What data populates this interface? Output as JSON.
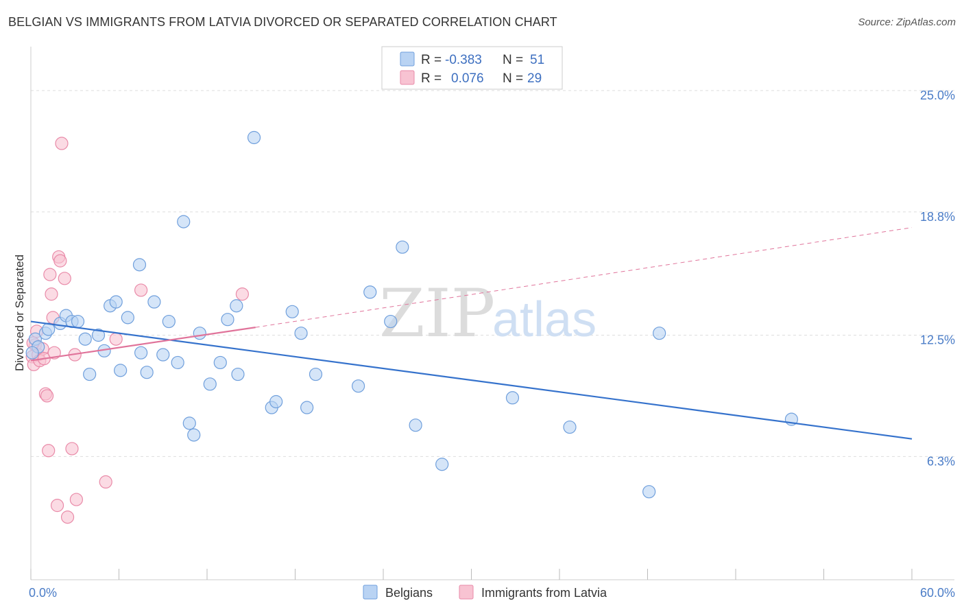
{
  "title": "BELGIAN VS IMMIGRANTS FROM LATVIA DIVORCED OR SEPARATED CORRELATION CHART",
  "source": "Source: ZipAtlas.com",
  "watermark": {
    "zip": "ZIP",
    "atlas": "atlas"
  },
  "colors": {
    "belgians_fill": "#b9d3f3",
    "belgians_stroke": "#6f9fdc",
    "belgians_line": "#3572cc",
    "latvia_fill": "#f8c3d2",
    "latvia_stroke": "#e98aa8",
    "latvia_line": "#e0739a",
    "grid": "#dddddd",
    "tick_label": "#4a7cc7"
  },
  "stats_legend": [
    {
      "r_label": "R =",
      "r_value": "-0.383",
      "n_label": "N =",
      "n_value": "51"
    },
    {
      "r_label": "R =",
      "r_value": "0.076",
      "n_label": "N =",
      "n_value": "29"
    }
  ],
  "chart_data": {
    "type": "scatter",
    "title": "BELGIAN VS IMMIGRANTS FROM LATVIA DIVORCED OR SEPARATED CORRELATION CHART",
    "xlabel": "",
    "ylabel": "Divorced or Separated",
    "xlim": [
      0,
      60
    ],
    "ylim": [
      0,
      27
    ],
    "x_tick_labels": [
      "0.0%",
      "60.0%"
    ],
    "y_ticks": [
      6.3,
      12.5,
      18.8,
      25.0
    ],
    "y_tick_labels": [
      "6.3%",
      "12.5%",
      "18.8%",
      "25.0%"
    ],
    "grid": true,
    "legend_position": "bottom",
    "series": [
      {
        "name": "Belgians",
        "points": [
          [
            0.3,
            12.3
          ],
          [
            0.5,
            11.9
          ],
          [
            1.0,
            12.6
          ],
          [
            1.2,
            12.8
          ],
          [
            2.0,
            13.1
          ],
          [
            2.4,
            13.5
          ],
          [
            2.8,
            13.2
          ],
          [
            3.2,
            13.2
          ],
          [
            3.7,
            12.3
          ],
          [
            4.0,
            10.5
          ],
          [
            4.6,
            12.5
          ],
          [
            5.0,
            11.7
          ],
          [
            5.4,
            14.0
          ],
          [
            5.8,
            14.2
          ],
          [
            6.1,
            10.7
          ],
          [
            6.6,
            13.4
          ],
          [
            7.4,
            16.1
          ],
          [
            7.5,
            11.6
          ],
          [
            7.9,
            10.6
          ],
          [
            8.4,
            14.2
          ],
          [
            9.0,
            11.5
          ],
          [
            9.4,
            13.2
          ],
          [
            10.0,
            11.1
          ],
          [
            10.4,
            18.3
          ],
          [
            10.8,
            8.0
          ],
          [
            11.1,
            7.4
          ],
          [
            11.5,
            12.6
          ],
          [
            12.2,
            10.0
          ],
          [
            12.9,
            11.1
          ],
          [
            13.4,
            13.3
          ],
          [
            14.0,
            14.0
          ],
          [
            14.1,
            10.5
          ],
          [
            15.2,
            22.6
          ],
          [
            16.4,
            8.8
          ],
          [
            16.7,
            9.1
          ],
          [
            17.8,
            13.7
          ],
          [
            18.4,
            12.6
          ],
          [
            18.8,
            8.8
          ],
          [
            19.4,
            10.5
          ],
          [
            22.3,
            9.9
          ],
          [
            23.1,
            14.7
          ],
          [
            24.5,
            13.2
          ],
          [
            25.3,
            17.0
          ],
          [
            26.2,
            7.9
          ],
          [
            28.0,
            5.9
          ],
          [
            32.8,
            9.3
          ],
          [
            36.7,
            7.8
          ],
          [
            42.1,
            4.5
          ],
          [
            42.8,
            12.6
          ],
          [
            51.8,
            8.2
          ],
          [
            0.1,
            11.6
          ]
        ],
        "trend": {
          "x": [
            0,
            60
          ],
          "y": [
            13.2,
            7.2
          ]
        }
      },
      {
        "name": "Immigrants from Latvia",
        "points": [
          [
            0.1,
            11.4
          ],
          [
            0.2,
            11.0
          ],
          [
            0.3,
            12.0
          ],
          [
            0.4,
            12.7
          ],
          [
            0.5,
            11.5
          ],
          [
            0.6,
            11.2
          ],
          [
            0.8,
            11.8
          ],
          [
            0.9,
            11.3
          ],
          [
            1.0,
            9.5
          ],
          [
            1.1,
            9.4
          ],
          [
            1.2,
            6.6
          ],
          [
            1.3,
            15.6
          ],
          [
            1.4,
            14.6
          ],
          [
            1.5,
            13.4
          ],
          [
            1.6,
            11.6
          ],
          [
            1.8,
            3.8
          ],
          [
            1.9,
            16.5
          ],
          [
            2.0,
            16.3
          ],
          [
            2.3,
            15.4
          ],
          [
            2.8,
            6.7
          ],
          [
            2.1,
            22.3
          ],
          [
            2.5,
            3.2
          ],
          [
            3.0,
            11.5
          ],
          [
            3.1,
            4.1
          ],
          [
            5.1,
            5.0
          ],
          [
            5.8,
            12.3
          ],
          [
            7.5,
            14.8
          ],
          [
            14.4,
            14.6
          ],
          [
            0.15,
            12.1
          ]
        ],
        "trend": {
          "x": [
            0,
            15.3
          ],
          "y": [
            11.2,
            12.9
          ],
          "dashed_extension": {
            "x": [
              15.3,
              60
            ],
            "y": [
              12.9,
              18.0
            ]
          }
        }
      }
    ]
  }
}
